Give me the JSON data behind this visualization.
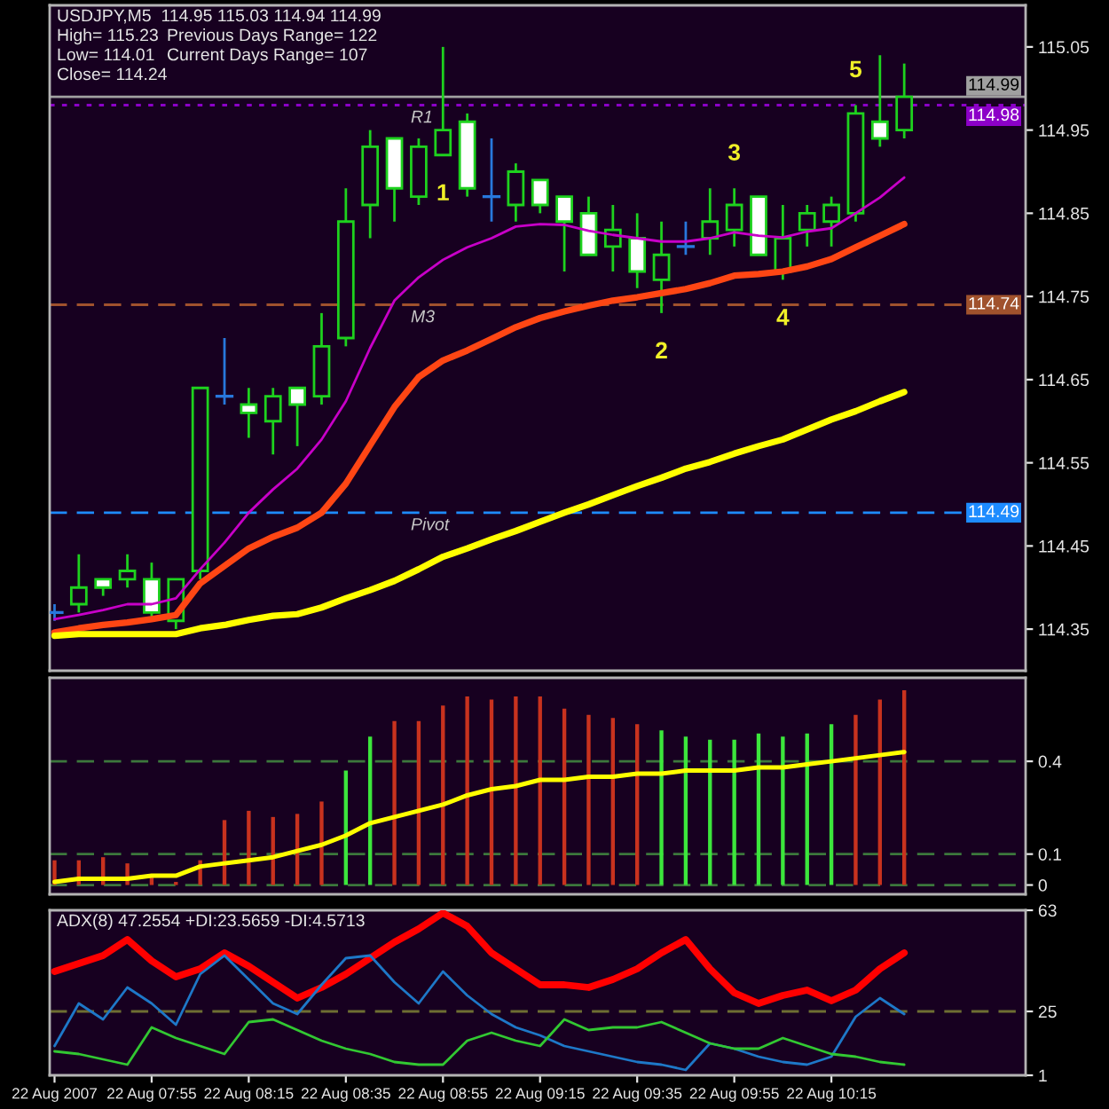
{
  "chart_data": [
    {
      "type": "candlestick",
      "title": "USDJPY,M5  114.95 115.03 114.94 114.99",
      "annotations": [
        "High= 115.23",
        "Previous Days Range= 122",
        "Low= 114.01",
        "Current Days Range= 107",
        "Close= 114.24",
        {
          "text": "1",
          "x": "2007-08-22T08:55",
          "y": 114.92
        },
        {
          "text": "2",
          "x": "2007-08-22T09:40",
          "y": 114.73
        },
        {
          "text": "3",
          "x": "2007-08-22T09:55",
          "y": 114.88
        },
        {
          "text": "4",
          "x": "2007-08-22T10:05",
          "y": 114.77
        },
        {
          "text": "5",
          "x": "2007-08-22T10:20",
          "y": 114.98
        },
        {
          "text": "114.99",
          "x": "2007-08-22T10:55",
          "y": 114.99
        },
        {
          "text": "114.98",
          "x": "2007-08-22T10:55",
          "y": 114.98
        },
        {
          "text": "114.74",
          "x": "2007-08-22T10:55",
          "y": 114.74
        },
        {
          "text": "114.49",
          "x": "2007-08-22T10:55",
          "y": 114.49
        }
      ],
      "x": [
        "2007-08-22T07:35",
        "2007-08-22T07:40",
        "2007-08-22T07:45",
        "2007-08-22T07:50",
        "2007-08-22T07:55",
        "2007-08-22T08:00",
        "2007-08-22T08:05",
        "2007-08-22T08:10",
        "2007-08-22T08:15",
        "2007-08-22T08:20",
        "2007-08-22T08:25",
        "2007-08-22T08:30",
        "2007-08-22T08:35",
        "2007-08-22T08:40",
        "2007-08-22T08:45",
        "2007-08-22T08:50",
        "2007-08-22T08:55",
        "2007-08-22T09:00",
        "2007-08-22T09:05",
        "2007-08-22T09:10",
        "2007-08-22T09:15",
        "2007-08-22T09:20",
        "2007-08-22T09:25",
        "2007-08-22T09:30",
        "2007-08-22T09:35",
        "2007-08-22T09:40",
        "2007-08-22T09:45",
        "2007-08-22T09:50",
        "2007-08-22T09:55",
        "2007-08-22T10:00",
        "2007-08-22T10:05",
        "2007-08-22T10:10",
        "2007-08-22T10:15",
        "2007-08-22T10:20",
        "2007-08-22T10:25",
        "2007-08-22T10:30"
      ],
      "ohlc": [
        [
          114.37,
          114.38,
          114.36,
          114.37
        ],
        [
          114.38,
          114.44,
          114.37,
          114.4
        ],
        [
          114.41,
          114.41,
          114.39,
          114.4
        ],
        [
          114.41,
          114.44,
          114.4,
          114.42
        ],
        [
          114.41,
          114.43,
          114.36,
          114.37
        ],
        [
          114.36,
          114.41,
          114.35,
          114.41
        ],
        [
          114.42,
          114.64,
          114.41,
          114.64
        ],
        [
          114.63,
          114.7,
          114.62,
          114.63
        ],
        [
          114.62,
          114.64,
          114.58,
          114.61
        ],
        [
          114.6,
          114.64,
          114.56,
          114.63
        ],
        [
          114.64,
          114.64,
          114.57,
          114.62
        ],
        [
          114.63,
          114.73,
          114.62,
          114.69
        ],
        [
          114.7,
          114.88,
          114.69,
          114.84
        ],
        [
          114.86,
          114.95,
          114.82,
          114.93
        ],
        [
          114.94,
          114.94,
          114.84,
          114.88
        ],
        [
          114.87,
          114.94,
          114.86,
          114.93
        ],
        [
          114.92,
          115.05,
          114.92,
          114.95
        ],
        [
          114.96,
          114.97,
          114.87,
          114.88
        ],
        [
          114.87,
          114.94,
          114.84,
          114.87
        ],
        [
          114.86,
          114.91,
          114.84,
          114.9
        ],
        [
          114.89,
          114.89,
          114.85,
          114.86
        ],
        [
          114.87,
          114.87,
          114.78,
          114.84
        ],
        [
          114.85,
          114.87,
          114.8,
          114.8
        ],
        [
          114.81,
          114.86,
          114.78,
          114.83
        ],
        [
          114.82,
          114.85,
          114.76,
          114.78
        ],
        [
          114.77,
          114.84,
          114.73,
          114.8
        ],
        [
          114.81,
          114.84,
          114.8,
          114.81
        ],
        [
          114.82,
          114.88,
          114.8,
          114.84
        ],
        [
          114.83,
          114.88,
          114.81,
          114.86
        ],
        [
          114.87,
          114.87,
          114.8,
          114.8
        ],
        [
          114.78,
          114.86,
          114.77,
          114.82
        ],
        [
          114.83,
          114.86,
          114.81,
          114.85
        ],
        [
          114.84,
          114.87,
          114.81,
          114.86
        ],
        [
          114.85,
          114.98,
          114.84,
          114.97
        ],
        [
          114.96,
          115.04,
          114.93,
          114.94
        ],
        [
          114.95,
          115.03,
          114.94,
          114.99
        ]
      ],
      "color": "#1ed21e",
      "colors": [
        "#2878dc",
        "#170020",
        "#ffffff",
        "#170020",
        "#ffffff",
        "#170020",
        "#170020",
        "#2878dc",
        "#ffffff",
        "#170020",
        "#ffffff",
        "#170020",
        "#170020",
        "#170020",
        "#ffffff",
        "#170020",
        "#170020",
        "#ffffff",
        "#2878dc",
        "#170020",
        "#ffffff",
        "#ffffff",
        "#ffffff",
        "#170020",
        "#ffffff",
        "#170020",
        "#2878dc",
        "#170020",
        "#170020",
        "#ffffff",
        "#170020",
        "#170020",
        "#170020",
        "#170020",
        "#ffffff",
        "#170020"
      ],
      "series": [
        {
          "type": "line",
          "color": "#c800c8",
          "values": [
            114.362,
            114.367,
            114.373,
            114.38,
            114.38,
            114.387,
            114.422,
            114.454,
            114.49,
            114.518,
            114.543,
            114.578,
            114.624,
            114.688,
            114.745,
            114.773,
            114.794,
            114.809,
            114.82,
            114.834,
            114.837,
            114.836,
            114.829,
            114.824,
            114.82,
            114.816,
            114.816,
            114.82,
            114.827,
            114.823,
            114.821,
            114.828,
            114.832,
            114.85,
            114.869,
            114.893
          ]
        },
        {
          "type": "line",
          "color": "#ff4614",
          "values": [
            114.346,
            114.351,
            114.355,
            114.358,
            114.362,
            114.367,
            114.405,
            114.426,
            114.447,
            114.461,
            114.472,
            114.49,
            114.525,
            114.571,
            114.617,
            114.653,
            114.673,
            114.685,
            114.699,
            114.713,
            114.724,
            114.732,
            114.739,
            114.745,
            114.749,
            114.754,
            114.759,
            114.766,
            114.775,
            114.777,
            114.78,
            114.786,
            114.795,
            114.809,
            114.823,
            114.837
          ]
        },
        {
          "type": "line",
          "color": "#ffff00",
          "values": [
            114.342,
            114.344,
            114.344,
            114.344,
            114.344,
            114.344,
            114.351,
            114.355,
            114.361,
            114.366,
            114.368,
            114.376,
            114.387,
            114.397,
            114.408,
            114.422,
            114.437,
            114.447,
            114.458,
            114.468,
            114.479,
            114.49,
            114.5,
            114.511,
            114.522,
            114.532,
            114.543,
            114.551,
            114.561,
            114.57,
            114.578,
            114.59,
            114.602,
            114.612,
            114.624,
            114.635
          ]
        }
      ],
      "ref_lines": [
        {
          "axis": "y",
          "value": 114.99,
          "color": "#a0a0a0",
          "line_style": "solid"
        },
        {
          "axis": "y",
          "value": 114.98,
          "label": "R1",
          "color": "#8c00c8",
          "line_style": "dotted"
        },
        {
          "axis": "y",
          "value": 114.74,
          "label": "M3",
          "color": "#a0522d",
          "line_style": "dashed"
        },
        {
          "axis": "y",
          "value": 114.49,
          "label": "Pivot",
          "color": "#1e8cff",
          "line_style": "dashed"
        }
      ],
      "xlim": [
        "2007-08-22T07:34",
        "2007-08-22T10:55"
      ],
      "ylim": [
        114.3,
        115.1
      ],
      "yticks": [
        114.35,
        114.45,
        114.55,
        114.65,
        114.75,
        114.85,
        114.95,
        115.05
      ],
      "tick_labels": "y"
    },
    {
      "type": "bar",
      "x": [
        "2007-08-22T07:35",
        "2007-08-22T07:40",
        "2007-08-22T07:45",
        "2007-08-22T07:50",
        "2007-08-22T07:55",
        "2007-08-22T08:00",
        "2007-08-22T08:05",
        "2007-08-22T08:10",
        "2007-08-22T08:15",
        "2007-08-22T08:20",
        "2007-08-22T08:25",
        "2007-08-22T08:30",
        "2007-08-22T08:35",
        "2007-08-22T08:40",
        "2007-08-22T08:45",
        "2007-08-22T08:50",
        "2007-08-22T08:55",
        "2007-08-22T09:00",
        "2007-08-22T09:05",
        "2007-08-22T09:10",
        "2007-08-22T09:15",
        "2007-08-22T09:20",
        "2007-08-22T09:25",
        "2007-08-22T09:30",
        "2007-08-22T09:35",
        "2007-08-22T09:40",
        "2007-08-22T09:45",
        "2007-08-22T09:50",
        "2007-08-22T09:55",
        "2007-08-22T10:00",
        "2007-08-22T10:05",
        "2007-08-22T10:10",
        "2007-08-22T10:15",
        "2007-08-22T10:20",
        "2007-08-22T10:25",
        "2007-08-22T10:30"
      ],
      "series": [
        {
          "type": "bar",
          "colors": [
            "#c8321e",
            "#c8321e",
            "#c8321e",
            "#c8321e",
            "#c8321e",
            "#c8321e",
            "#c8321e",
            "#c8321e",
            "#c8321e",
            "#c8321e",
            "#c8321e",
            "#c8321e",
            "#3ce63c",
            "#3ce63c",
            "#c8321e",
            "#c8321e",
            "#c8321e",
            "#c8321e",
            "#c8321e",
            "#c8321e",
            "#c8321e",
            "#c8321e",
            "#c8321e",
            "#c8321e",
            "#c8321e",
            "#3ce63c",
            "#3ce63c",
            "#3ce63c",
            "#3ce63c",
            "#3ce63c",
            "#3ce63c",
            "#3ce63c",
            "#3ce63c",
            "#c8321e",
            "#c8321e",
            "#c8321e"
          ],
          "values": [
            0.08,
            0.08,
            0.09,
            0.07,
            0.03,
            0.01,
            0.08,
            0.21,
            0.24,
            0.22,
            0.23,
            0.27,
            0.37,
            0.48,
            0.53,
            0.53,
            0.58,
            0.61,
            0.6,
            0.61,
            0.61,
            0.57,
            0.55,
            0.54,
            0.52,
            0.5,
            0.48,
            0.47,
            0.47,
            0.49,
            0.48,
            0.49,
            0.52,
            0.55,
            0.6,
            0.63
          ]
        },
        {
          "type": "line",
          "color": "#ffff00",
          "values": [
            0.01,
            0.02,
            0.02,
            0.02,
            0.03,
            0.03,
            0.06,
            0.07,
            0.08,
            0.09,
            0.11,
            0.13,
            0.16,
            0.2,
            0.22,
            0.24,
            0.26,
            0.29,
            0.31,
            0.32,
            0.34,
            0.34,
            0.35,
            0.35,
            0.36,
            0.36,
            0.37,
            0.37,
            0.37,
            0.38,
            0.38,
            0.39,
            0.4,
            0.41,
            0.42,
            0.43
          ]
        }
      ],
      "ref_lines": [
        {
          "axis": "y",
          "value": 0,
          "color": "#3c783c",
          "line_style": "dashed"
        },
        {
          "axis": "y",
          "value": 0.1,
          "color": "#3c783c",
          "line_style": "dashed"
        },
        {
          "axis": "y",
          "value": 0.4,
          "color": "#3c783c",
          "line_style": "dashed"
        }
      ],
      "xlim": [
        "2007-08-22T07:34",
        "2007-08-22T10:55"
      ],
      "ylim": [
        -0.03,
        0.67
      ],
      "yticks": [
        0,
        0.1,
        0.4
      ],
      "tick_labels": "y"
    },
    {
      "type": "line",
      "annotations": [
        "ADX(8) 47.2554 +DI:23.5659 -DI:4.5713"
      ],
      "x": [
        "2007-08-22T07:35",
        "2007-08-22T07:40",
        "2007-08-22T07:45",
        "2007-08-22T07:50",
        "2007-08-22T07:55",
        "2007-08-22T08:00",
        "2007-08-22T08:05",
        "2007-08-22T08:10",
        "2007-08-22T08:15",
        "2007-08-22T08:20",
        "2007-08-22T08:25",
        "2007-08-22T08:30",
        "2007-08-22T08:35",
        "2007-08-22T08:40",
        "2007-08-22T08:45",
        "2007-08-22T08:50",
        "2007-08-22T08:55",
        "2007-08-22T09:00",
        "2007-08-22T09:05",
        "2007-08-22T09:10",
        "2007-08-22T09:15",
        "2007-08-22T09:20",
        "2007-08-22T09:25",
        "2007-08-22T09:30",
        "2007-08-22T09:35",
        "2007-08-22T09:40",
        "2007-08-22T09:45",
        "2007-08-22T09:50",
        "2007-08-22T09:55",
        "2007-08-22T10:00",
        "2007-08-22T10:05",
        "2007-08-22T10:10",
        "2007-08-22T10:15",
        "2007-08-22T10:20",
        "2007-08-22T10:25",
        "2007-08-22T10:30"
      ],
      "series": [
        {
          "color": "#ff0000",
          "values": [
            40,
            43,
            46,
            52,
            44,
            38,
            41,
            47,
            42,
            36,
            30,
            34,
            39,
            45,
            51,
            56,
            62,
            57,
            47,
            41,
            35,
            35,
            34,
            37,
            41,
            47,
            52,
            41,
            32,
            28,
            31,
            33,
            29,
            33,
            41,
            47
          ]
        },
        {
          "color": "#1e78c8",
          "values": [
            12,
            28,
            22,
            34,
            28,
            20,
            39,
            46,
            37,
            28,
            24,
            35,
            45,
            46,
            36,
            28,
            40,
            31,
            24,
            19,
            16,
            12,
            10,
            8,
            6,
            5,
            3,
            13,
            11,
            8,
            6,
            5,
            8,
            23,
            30,
            24
          ]
        },
        {
          "color": "#32c832",
          "values": [
            10,
            9,
            7,
            5,
            19,
            15,
            12,
            9,
            21,
            22,
            18,
            14,
            11,
            9,
            6,
            5,
            5,
            14,
            17,
            14,
            12,
            22,
            18,
            19,
            19,
            21,
            17,
            13,
            11,
            11,
            15,
            12,
            9,
            8,
            6,
            5
          ]
        }
      ],
      "ref_lines": [
        {
          "axis": "y",
          "value": 25,
          "color": "#6e6e32",
          "line_style": "dashed"
        }
      ],
      "xlim": [
        "2007-08-22T07:34",
        "2007-08-22T10:55"
      ],
      "xticks": [
        {
          "value": "2007-08-22T07:35",
          "label": "22 Aug 2007"
        },
        {
          "value": "2007-08-22T07:55",
          "label": "22 Aug 07:55"
        },
        {
          "value": "2007-08-22T08:15",
          "label": "22 Aug 08:15"
        },
        {
          "value": "2007-08-22T08:35",
          "label": "22 Aug 08:35"
        },
        {
          "value": "2007-08-22T08:55",
          "label": "22 Aug 08:55"
        },
        {
          "value": "2007-08-22T09:15",
          "label": "22 Aug 09:15"
        },
        {
          "value": "2007-08-22T09:35",
          "label": "22 Aug 09:35"
        },
        {
          "value": "2007-08-22T09:55",
          "label": "22 Aug 09:55"
        },
        {
          "value": "2007-08-22T10:15",
          "label": "22 Aug 10:15"
        }
      ],
      "ylim": [
        1,
        63
      ],
      "yticks": [
        1,
        25,
        63
      ]
    }
  ]
}
